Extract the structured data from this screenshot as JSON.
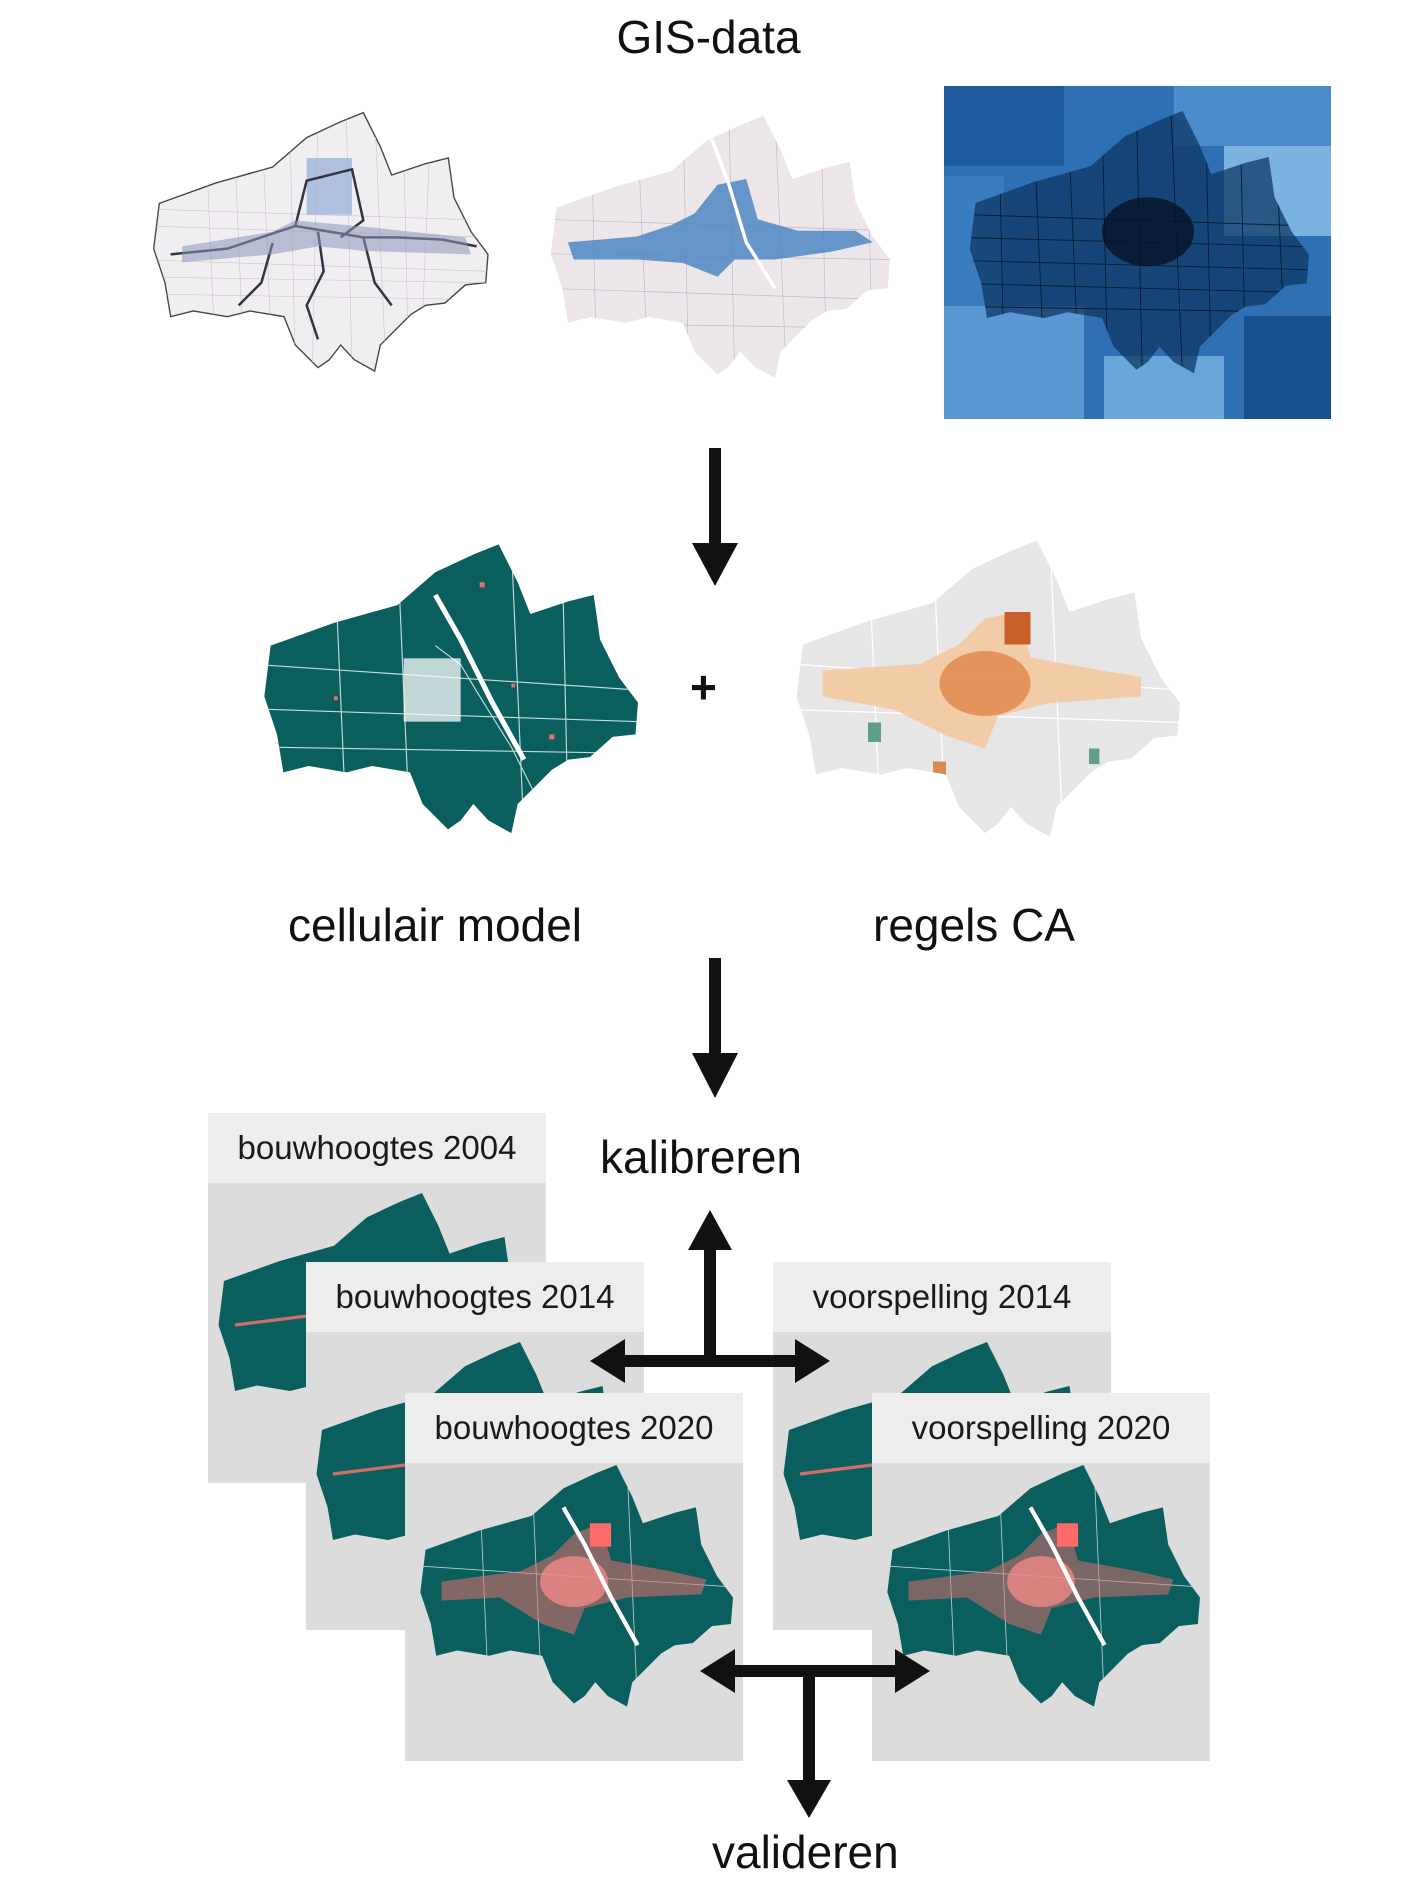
{
  "header": {
    "title": "GIS-data"
  },
  "step2": {
    "plus": "+",
    "left_label": "cellulair model",
    "right_label": "regels CA"
  },
  "calibrate": {
    "label": "kalibreren"
  },
  "validate": {
    "label": "valideren"
  },
  "panels": [
    {
      "caption": "bouwhoogtes 2004"
    },
    {
      "caption": "bouwhoogtes 2014"
    },
    {
      "caption": "bouwhoogtes 2020"
    },
    {
      "caption": "voorspelling 2014"
    },
    {
      "caption": "voorspelling 2020"
    }
  ],
  "colors": {
    "teal": "#0b5e5e",
    "built": "#e8706c",
    "arrow": "#111111",
    "blue_dark": "#0d3f73",
    "blue_light": "#6fa6d6",
    "panel_bg": "#dcdcdc",
    "caption_bg": "#ededed"
  }
}
